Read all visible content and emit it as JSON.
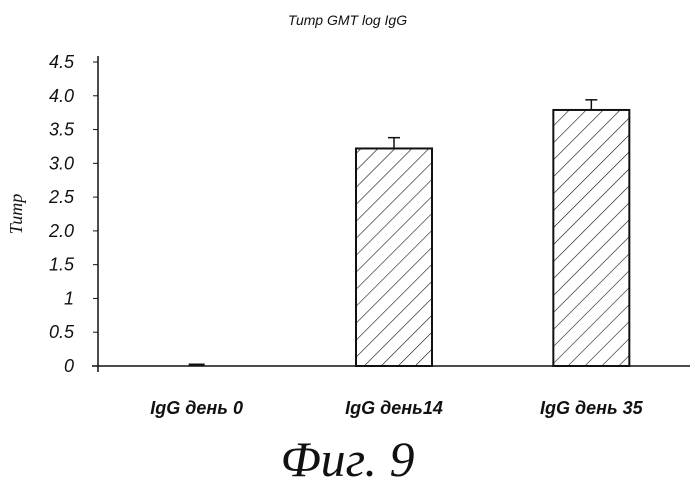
{
  "chart_data": {
    "type": "bar",
    "title": "Титр GMT log IgG",
    "ylabel": "Титр",
    "xlabel": "",
    "categories": [
      "IgG день 0",
      "IgG день14",
      "IgG день 35"
    ],
    "values": [
      0.02,
      3.22,
      3.79
    ],
    "error_plus": [
      0.0,
      0.16,
      0.15
    ],
    "ylim": [
      0,
      4.5
    ],
    "yticks": [
      "0",
      "0.5",
      "1",
      "1.5",
      "2.0",
      "2.5",
      "3.0",
      "3.5",
      "4.0",
      "4.5"
    ],
    "ytick_values": [
      0,
      0.5,
      1,
      1.5,
      2.0,
      2.5,
      3.0,
      3.5,
      4.0,
      4.5
    ],
    "bar_fill": "diagonal-hatch",
    "grid": false,
    "legend": "none"
  },
  "figure_caption": "Фиг. 9"
}
